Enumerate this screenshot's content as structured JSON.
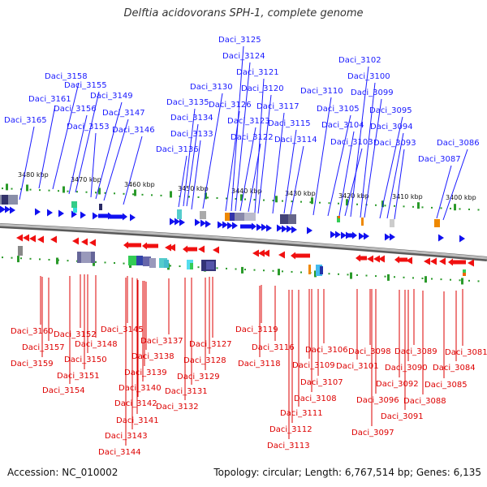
{
  "title": "Delftia acidovorans SPH-1, complete genome",
  "accession": "Accession: NC_010002",
  "info": "Topology: circular; Length: 6,767,514 bp; Genes: 6,135",
  "colors": {
    "forward": "#1010f0",
    "reverse": "#f01010",
    "forward_label": "#1a1aff",
    "reverse_label": "#dd0000",
    "tick": "#2a9a2a",
    "backbone": "#8a8a8a"
  },
  "scale": [
    "3480 kbp",
    "3470 kbp",
    "3460 kbp",
    "3450 kbp",
    "3440 kbp",
    "3430 kbp",
    "3420 kbp",
    "3410 kbp",
    "3400 kbp"
  ],
  "top_genes": [
    "Daci_3165",
    "Daci_3161",
    "Daci_3158",
    "Daci_3156",
    "Daci_3155",
    "Daci_3153",
    "Daci_3149",
    "Daci_3147",
    "Daci_3146",
    "Daci_3136",
    "Daci_3135",
    "Daci_3134",
    "Daci_3133",
    "Daci_3130",
    "Daci_3126",
    "Daci_3125",
    "Daci_3124",
    "Daci_3123",
    "Daci_3122",
    "Daci_3121",
    "Daci_3120",
    "Daci_3117",
    "Daci_3115",
    "Daci_3114",
    "Daci_3110",
    "Daci_3105",
    "Daci_3104",
    "Daci_3103",
    "Daci_3102",
    "Daci_3100",
    "Daci_3099",
    "Daci_3095",
    "Daci_3094",
    "Daci_3093",
    "Daci_3087",
    "Daci_3086"
  ],
  "bottom_genes": [
    "Daci_3160",
    "Daci_3159",
    "Daci_3157",
    "Daci_3154",
    "Daci_3152",
    "Daci_3151",
    "Daci_3150",
    "Daci_3148",
    "Daci_3145",
    "Daci_3144",
    "Daci_3143",
    "Daci_3142",
    "Daci_3141",
    "Daci_3140",
    "Daci_3139",
    "Daci_3138",
    "Daci_3137",
    "Daci_3132",
    "Daci_3131",
    "Daci_3129",
    "Daci_3128",
    "Daci_3127",
    "Daci_3119",
    "Daci_3118",
    "Daci_3116",
    "Daci_3113",
    "Daci_3112",
    "Daci_3111",
    "Daci_3109",
    "Daci_3108",
    "Daci_3107",
    "Daci_3106",
    "Daci_3101",
    "Daci_3098",
    "Daci_3097",
    "Daci_3096",
    "Daci_3092",
    "Daci_3091",
    "Daci_3090",
    "Daci_3089",
    "Daci_3088",
    "Daci_3085",
    "Daci_3084",
    "Daci_3081"
  ]
}
